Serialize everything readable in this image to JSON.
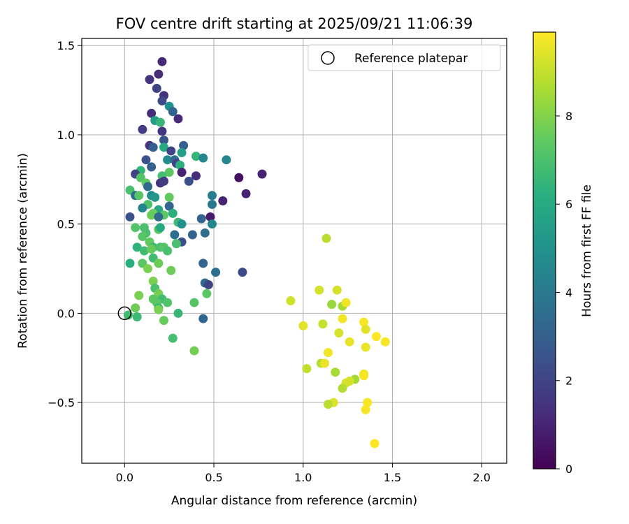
{
  "chart_data": {
    "type": "scatter",
    "title": "FOV centre drift starting at 2025/09/21 11:06:39",
    "xlabel": "Angular distance from reference (arcmin)",
    "ylabel": "Rotation from reference (arcmin)",
    "xlim": [
      -0.24,
      2.14
    ],
    "ylim": [
      -0.84,
      1.54
    ],
    "xticks": [
      0.0,
      0.5,
      1.0,
      1.5,
      2.0
    ],
    "xtick_labels": [
      "0.0",
      "0.5",
      "1.0",
      "1.5",
      "2.0"
    ],
    "yticks": [
      -0.5,
      0.0,
      0.5,
      1.0,
      1.5
    ],
    "ytick_labels": [
      "−0.5",
      "0.0",
      "0.5",
      "1.0",
      "1.5"
    ],
    "grid": true,
    "legend": {
      "position": "top-right",
      "label": "Reference platepar"
    },
    "reference_point": {
      "x": 0.0,
      "y": 0.0
    },
    "colorbar": {
      "label": "Hours from first FF file",
      "range": [
        0,
        9.9
      ],
      "ticks": [
        0,
        2,
        4,
        6,
        8
      ],
      "tick_labels": [
        "0",
        "2",
        "4",
        "6",
        "8"
      ],
      "colormap": "viridis"
    },
    "points": [
      [
        0.21,
        1.41,
        1.2
      ],
      [
        0.14,
        1.31,
        1.5
      ],
      [
        0.19,
        1.34,
        1.3
      ],
      [
        0.18,
        1.26,
        2.0
      ],
      [
        0.22,
        1.22,
        1.5
      ],
      [
        0.25,
        1.16,
        5.0
      ],
      [
        0.21,
        1.19,
        2.3
      ],
      [
        0.27,
        1.13,
        3.2
      ],
      [
        0.15,
        1.12,
        1.3
      ],
      [
        0.3,
        1.09,
        1.2
      ],
      [
        0.17,
        1.08,
        5.5
      ],
      [
        0.2,
        1.07,
        6.6
      ],
      [
        0.1,
        1.03,
        1.8
      ],
      [
        0.21,
        1.02,
        1.6
      ],
      [
        0.22,
        0.97,
        2.6
      ],
      [
        0.14,
        0.94,
        1.5
      ],
      [
        0.16,
        0.93,
        3.0
      ],
      [
        0.33,
        0.94,
        3.0
      ],
      [
        0.22,
        0.93,
        6.0
      ],
      [
        0.26,
        0.91,
        2.1
      ],
      [
        0.32,
        0.9,
        5.5
      ],
      [
        0.4,
        0.88,
        6.5
      ],
      [
        0.44,
        0.87,
        4.6
      ],
      [
        0.57,
        0.86,
        4.5
      ],
      [
        0.12,
        0.86,
        2.5
      ],
      [
        0.24,
        0.86,
        4.7
      ],
      [
        0.28,
        0.86,
        3.5
      ],
      [
        0.29,
        0.84,
        2.0
      ],
      [
        0.31,
        0.83,
        6.3
      ],
      [
        0.15,
        0.82,
        3.0
      ],
      [
        0.09,
        0.8,
        6.5
      ],
      [
        0.06,
        0.78,
        2.0
      ],
      [
        0.25,
        0.79,
        7.4
      ],
      [
        0.21,
        0.77,
        6.9
      ],
      [
        0.32,
        0.79,
        1.0
      ],
      [
        0.4,
        0.77,
        1.3
      ],
      [
        0.64,
        0.76,
        0.5
      ],
      [
        0.77,
        0.78,
        1.0
      ],
      [
        0.09,
        0.76,
        7.2
      ],
      [
        0.12,
        0.73,
        7.5
      ],
      [
        0.2,
        0.73,
        1.4
      ],
      [
        0.22,
        0.74,
        1.8
      ],
      [
        0.36,
        0.74,
        2.4
      ],
      [
        0.13,
        0.71,
        3.4
      ],
      [
        0.03,
        0.69,
        7.0
      ],
      [
        0.06,
        0.66,
        3.6
      ],
      [
        0.08,
        0.66,
        7.3
      ],
      [
        0.15,
        0.66,
        4.8
      ],
      [
        0.17,
        0.65,
        5.3
      ],
      [
        0.68,
        0.67,
        1.0
      ],
      [
        0.25,
        0.65,
        7.5
      ],
      [
        0.49,
        0.66,
        4.2
      ],
      [
        0.55,
        0.63,
        1.0
      ],
      [
        0.13,
        0.61,
        7.1
      ],
      [
        0.49,
        0.61,
        3.9
      ],
      [
        0.1,
        0.59,
        4.5
      ],
      [
        0.19,
        0.58,
        6.0
      ],
      [
        0.25,
        0.6,
        3.3
      ],
      [
        0.22,
        0.55,
        7.4
      ],
      [
        0.27,
        0.56,
        6.3
      ],
      [
        0.15,
        0.55,
        7.7
      ],
      [
        0.16,
        0.56,
        7.6
      ],
      [
        0.03,
        0.54,
        2.5
      ],
      [
        0.19,
        0.54,
        3.5
      ],
      [
        0.48,
        0.54,
        0.8
      ],
      [
        0.43,
        0.53,
        3.2
      ],
      [
        0.3,
        0.51,
        6.7
      ],
      [
        0.32,
        0.5,
        5.0
      ],
      [
        0.49,
        0.5,
        4.6
      ],
      [
        0.06,
        0.48,
        7.2
      ],
      [
        0.11,
        0.48,
        7.0
      ],
      [
        0.19,
        0.47,
        7.4
      ],
      [
        0.2,
        0.48,
        6.0
      ],
      [
        0.12,
        0.45,
        7.0
      ],
      [
        0.28,
        0.44,
        3.6
      ],
      [
        0.38,
        0.44,
        3.2
      ],
      [
        0.45,
        0.45,
        3.5
      ],
      [
        0.1,
        0.43,
        7.3
      ],
      [
        0.14,
        0.4,
        7.5
      ],
      [
        0.32,
        0.4,
        2.4
      ],
      [
        0.29,
        0.39,
        7.0
      ],
      [
        0.07,
        0.37,
        6.4
      ],
      [
        0.16,
        0.37,
        6.7
      ],
      [
        0.2,
        0.37,
        7.0
      ],
      [
        0.22,
        0.37,
        7.3
      ],
      [
        0.11,
        0.35,
        6.8
      ],
      [
        0.15,
        0.36,
        7.6
      ],
      [
        0.24,
        0.35,
        7.0
      ],
      [
        0.16,
        0.31,
        6.8
      ],
      [
        0.03,
        0.28,
        6.3
      ],
      [
        0.1,
        0.28,
        7.4
      ],
      [
        0.19,
        0.28,
        7.7
      ],
      [
        0.44,
        0.28,
        3.2
      ],
      [
        0.13,
        0.25,
        7.9
      ],
      [
        0.26,
        0.24,
        7.7
      ],
      [
        0.51,
        0.23,
        3.6
      ],
      [
        0.66,
        0.23,
        2.2
      ],
      [
        0.16,
        0.18,
        7.9
      ],
      [
        0.45,
        0.17,
        3.5
      ],
      [
        0.47,
        0.16,
        2.0
      ],
      [
        0.17,
        0.14,
        7.0
      ],
      [
        0.19,
        0.11,
        7.8
      ],
      [
        0.46,
        0.11,
        7.4
      ],
      [
        0.08,
        0.1,
        7.9
      ],
      [
        0.16,
        0.08,
        7.4
      ],
      [
        0.21,
        0.08,
        6.8
      ],
      [
        0.18,
        0.06,
        7.4
      ],
      [
        0.24,
        0.06,
        7.2
      ],
      [
        0.39,
        0.06,
        7.3
      ],
      [
        0.06,
        0.03,
        7.7
      ],
      [
        0.19,
        0.03,
        6.7
      ],
      [
        0.19,
        0.02,
        7.9
      ],
      [
        0.3,
        0.0,
        6.6
      ],
      [
        0.02,
        -0.01,
        6.8
      ],
      [
        0.07,
        -0.02,
        6.7
      ],
      [
        0.22,
        -0.04,
        7.6
      ],
      [
        0.44,
        -0.03,
        3.3
      ],
      [
        0.27,
        -0.14,
        6.9
      ],
      [
        0.39,
        -0.21,
        7.8
      ],
      [
        1.13,
        0.42,
        8.9
      ],
      [
        0.93,
        0.07,
        9.2
      ],
      [
        1.09,
        0.13,
        9.3
      ],
      [
        1.19,
        0.13,
        9.3
      ],
      [
        1.16,
        0.05,
        8.4
      ],
      [
        1.22,
        0.04,
        8.6
      ],
      [
        1.24,
        0.06,
        9.7
      ],
      [
        1.34,
        -0.05,
        9.8
      ],
      [
        1.0,
        -0.07,
        9.5
      ],
      [
        1.11,
        -0.06,
        9.1
      ],
      [
        1.22,
        -0.03,
        9.7
      ],
      [
        1.35,
        -0.09,
        9.5
      ],
      [
        1.2,
        -0.11,
        9.3
      ],
      [
        1.26,
        -0.16,
        9.6
      ],
      [
        1.41,
        -0.13,
        9.9
      ],
      [
        1.46,
        -0.16,
        9.8
      ],
      [
        1.35,
        -0.19,
        9.6
      ],
      [
        1.14,
        -0.22,
        9.7
      ],
      [
        1.1,
        -0.28,
        8.8
      ],
      [
        1.12,
        -0.28,
        9.6
      ],
      [
        1.02,
        -0.31,
        9.0
      ],
      [
        1.18,
        -0.33,
        8.6
      ],
      [
        1.34,
        -0.34,
        9.7
      ],
      [
        1.34,
        -0.35,
        9.8
      ],
      [
        1.29,
        -0.37,
        8.6
      ],
      [
        1.26,
        -0.38,
        9.3
      ],
      [
        1.24,
        -0.39,
        9.3
      ],
      [
        1.22,
        -0.42,
        8.8
      ],
      [
        1.17,
        -0.5,
        9.4
      ],
      [
        1.14,
        -0.51,
        8.9
      ],
      [
        1.36,
        -0.5,
        9.8
      ],
      [
        1.35,
        -0.54,
        9.8
      ],
      [
        1.4,
        -0.73,
        9.9
      ]
    ]
  }
}
